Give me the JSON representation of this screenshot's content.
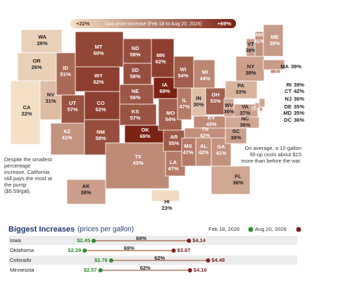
{
  "legend": {
    "low": {
      "value": 22,
      "label": "+22%"
    },
    "title": "Gas price increase (Feb 18 to Aug 20, 2026)",
    "high": {
      "value": 69,
      "label": "+69%"
    }
  },
  "states": [
    {
      "abbr": "WA",
      "value": {
        "value": 26,
        "label": "26%"
      }
    },
    {
      "abbr": "OR",
      "value": {
        "value": 26,
        "label": "26%"
      }
    },
    {
      "abbr": "CA",
      "value": {
        "value": 22,
        "label": "22%"
      }
    },
    {
      "abbr": "NV",
      "value": {
        "value": 31,
        "label": "31%"
      }
    },
    {
      "abbr": "ID",
      "value": {
        "value": 51,
        "label": "51%"
      }
    },
    {
      "abbr": "MT",
      "value": {
        "value": 60,
        "label": "60%"
      }
    },
    {
      "abbr": "WY",
      "value": {
        "value": 62,
        "label": "62%"
      }
    },
    {
      "abbr": "UT",
      "value": {
        "value": 57,
        "label": "57%"
      }
    },
    {
      "abbr": "CO",
      "value": {
        "value": 62,
        "label": "62%"
      }
    },
    {
      "abbr": "AZ",
      "value": {
        "value": 41,
        "label": "41%"
      }
    },
    {
      "abbr": "NM",
      "value": {
        "value": 58,
        "label": "58%"
      }
    },
    {
      "abbr": "ND",
      "value": {
        "value": 58,
        "label": "58%"
      }
    },
    {
      "abbr": "SD",
      "value": {
        "value": 58,
        "label": "58%"
      }
    },
    {
      "abbr": "NE",
      "value": {
        "value": 56,
        "label": "56%"
      }
    },
    {
      "abbr": "KS",
      "value": {
        "value": 57,
        "label": "57%"
      }
    },
    {
      "abbr": "OK",
      "value": {
        "value": 69,
        "label": "69%"
      }
    },
    {
      "abbr": "TX",
      "value": {
        "value": 43,
        "label": "43%"
      }
    },
    {
      "abbr": "MN",
      "value": {
        "value": 62,
        "label": "62%"
      }
    },
    {
      "abbr": "IA",
      "value": {
        "value": 69,
        "label": "69%"
      }
    },
    {
      "abbr": "MO",
      "value": {
        "value": 54,
        "label": "54%"
      }
    },
    {
      "abbr": "AR",
      "value": {
        "value": 55,
        "label": "55%"
      }
    },
    {
      "abbr": "LA",
      "value": {
        "value": 47,
        "label": "47%"
      }
    },
    {
      "abbr": "WI",
      "value": {
        "value": 54,
        "label": "54%"
      }
    },
    {
      "abbr": "IL",
      "value": {
        "value": 47,
        "label": "47%"
      }
    },
    {
      "abbr": "MI",
      "value": {
        "value": 44,
        "label": "44%"
      }
    },
    {
      "abbr": "IN",
      "value": {
        "value": 30,
        "label": "30%"
      }
    },
    {
      "abbr": "OH",
      "value": {
        "value": 53,
        "label": "53%"
      }
    },
    {
      "abbr": "KY",
      "value": {
        "value": 43,
        "label": "43%"
      }
    },
    {
      "abbr": "TN",
      "value": {
        "value": 42,
        "label": "42%"
      }
    },
    {
      "abbr": "MS",
      "value": {
        "value": 47,
        "label": "47%"
      }
    },
    {
      "abbr": "AL",
      "value": {
        "value": 42,
        "label": "42%"
      }
    },
    {
      "abbr": "GA",
      "value": {
        "value": 41,
        "label": "41%"
      }
    },
    {
      "abbr": "FL",
      "value": {
        "value": 36,
        "label": "36%"
      }
    },
    {
      "abbr": "SC",
      "value": {
        "value": 38,
        "label": "38%"
      }
    },
    {
      "abbr": "NC",
      "value": {
        "value": 36,
        "label": "36%"
      }
    },
    {
      "abbr": "VA",
      "value": {
        "value": 37,
        "label": "37%"
      }
    },
    {
      "abbr": "WV",
      "value": {
        "value": 36,
        "label": "36%"
      }
    },
    {
      "abbr": "PA",
      "value": {
        "value": 33,
        "label": "33%"
      }
    },
    {
      "abbr": "NY",
      "value": {
        "value": 38,
        "label": "38%"
      }
    },
    {
      "abbr": "VT",
      "value": {
        "value": 38,
        "label": "38%"
      }
    },
    {
      "abbr": "NH",
      "value": {
        "value": 41,
        "label": "41%"
      }
    },
    {
      "abbr": "ME",
      "value": {
        "value": 39,
        "label": "39%"
      }
    },
    {
      "abbr": "MA",
      "value": {
        "value": 39,
        "label": "39%"
      }
    },
    {
      "abbr": "RI",
      "value": {
        "value": 39,
        "label": "39%"
      }
    },
    {
      "abbr": "CT",
      "value": {
        "value": 42,
        "label": "42%"
      }
    },
    {
      "abbr": "NJ",
      "value": {
        "value": 36,
        "label": "36%"
      }
    },
    {
      "abbr": "DE",
      "value": {
        "value": 35,
        "label": "35%"
      }
    },
    {
      "abbr": "MD",
      "value": {
        "value": 35,
        "label": "35%"
      }
    },
    {
      "abbr": "DC",
      "value": {
        "value": 36,
        "label": "36%"
      }
    },
    {
      "abbr": "AK",
      "value": {
        "value": 38,
        "label": "38%"
      }
    },
    {
      "abbr": "HI",
      "value": {
        "value": 23,
        "label": "23%"
      }
    }
  ],
  "notes": {
    "california": "Despite the smallest percentage increase, California still pays the most at the pump ($5.59/gal).",
    "average": "On average, a 12-gallon fill-up costs about $15 more than before the war."
  },
  "increases": {
    "title": "Biggest Increases",
    "subtitle": "(prices per gallon)",
    "start_label": "Feb 18, 2026",
    "end_label": "Aug 20, 2026",
    "start_color": "#2e8b2e",
    "end_color": "#7a1f1f",
    "rows": [
      {
        "state": "Iowa",
        "start": {
          "value": 2.45,
          "label": "$2.45"
        },
        "change": "69%",
        "end": {
          "value": 4.14,
          "label": "$4.14"
        }
      },
      {
        "state": "Oklahoma",
        "start": {
          "value": 2.29,
          "label": "$2.29"
        },
        "change": "69%",
        "end": {
          "value": 3.87,
          "label": "$3.87"
        }
      },
      {
        "state": "Colorado",
        "start": {
          "value": 2.76,
          "label": "$2.76"
        },
        "change": "62%",
        "end": {
          "value": 4.48,
          "label": "$4.48"
        }
      },
      {
        "state": "Minnesota",
        "start": {
          "value": 2.57,
          "label": "$2.57"
        },
        "change": "62%",
        "end": {
          "value": 4.16,
          "label": "$4.16"
        }
      }
    ]
  }
}
